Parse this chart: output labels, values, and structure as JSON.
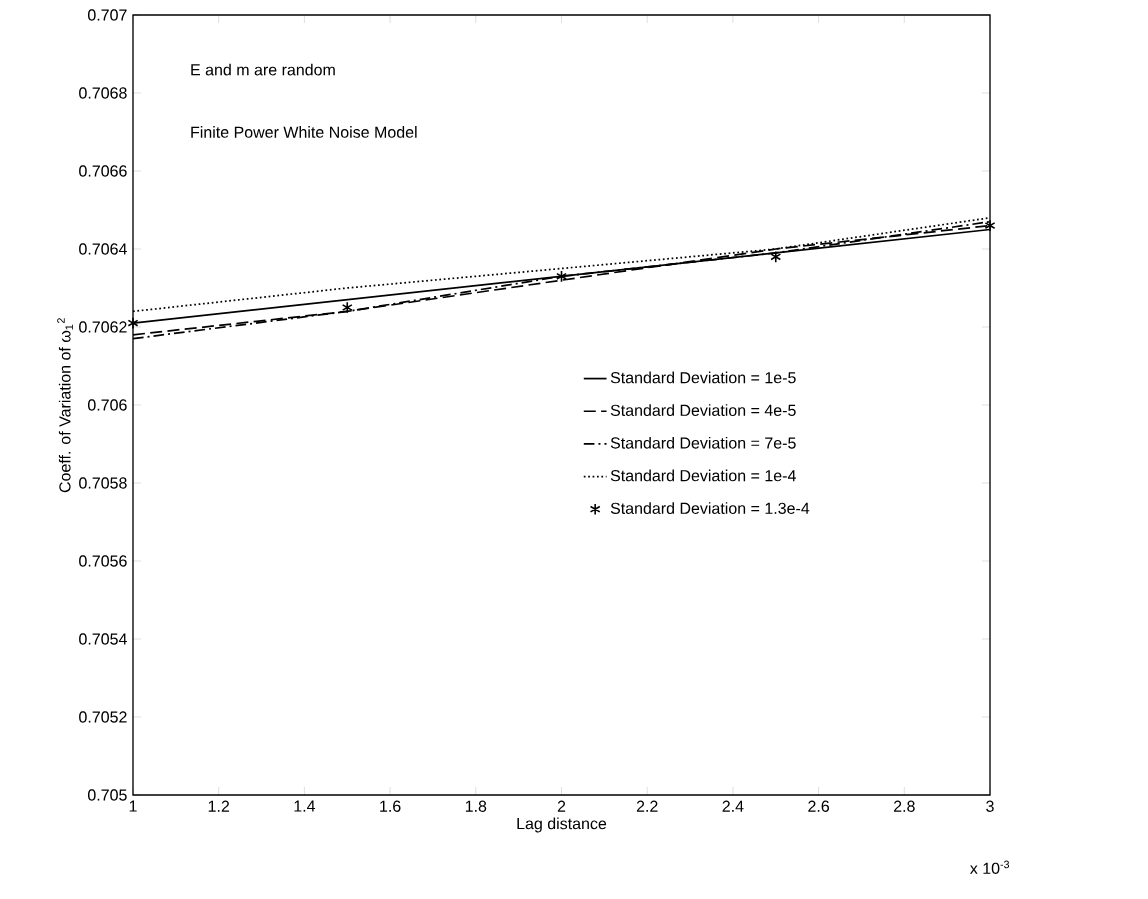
{
  "chart_data": {
    "type": "line",
    "xlabel": "Lag distance",
    "ylabel": "Coeff. of Variation of ω$_{1}$$^{2}$",
    "annotations": [
      "E and m are random",
      "Finite Power White Noise Model",
      "x 10$^{-3}$"
    ],
    "x": [
      1,
      1.5,
      2,
      2.5,
      3
    ],
    "series": [
      {
        "name": "Standard Deviation = 1e-5",
        "color": "#000000",
        "line_style": "solid",
        "marker": "none",
        "values": [
          0.70621,
          0.70627,
          0.70633,
          0.70639,
          0.70645
        ]
      },
      {
        "name": "Standard Deviation = 4e-5",
        "color": "#000000",
        "line_style": "dashed",
        "marker": "none",
        "values": [
          0.70618,
          0.70624,
          0.70632,
          0.7064,
          0.70646
        ]
      },
      {
        "name": "Standard Deviation = 7e-5",
        "color": "#000000",
        "line_style": "dashdot",
        "marker": "none",
        "values": [
          0.70617,
          0.70624,
          0.70633,
          0.70639,
          0.70647
        ]
      },
      {
        "name": "Standard Deviation = 1e-4",
        "color": "#000000",
        "line_style": "dotted",
        "marker": "none",
        "values": [
          0.70624,
          0.7063,
          0.70635,
          0.7064,
          0.70648
        ]
      },
      {
        "name": "Standard Deviation = 1.3e-4",
        "color": "#000000",
        "type": "scatter",
        "marker": "cross",
        "values": [
          0.70621,
          0.70625,
          0.70633,
          0.70638,
          0.70646
        ]
      }
    ],
    "xlim": [
      1,
      3
    ],
    "ylim": [
      0.705,
      0.707
    ],
    "xticks": [
      1,
      1.2,
      1.4,
      1.6,
      1.8,
      2,
      2.2,
      2.4,
      2.6,
      2.8,
      3
    ],
    "yticks": [
      0.705,
      0.7052,
      0.7054,
      0.7056,
      0.7058,
      0.706,
      0.7062,
      0.7064,
      0.7066,
      0.7068,
      0.707
    ],
    "grid": false,
    "legend": "right"
  }
}
